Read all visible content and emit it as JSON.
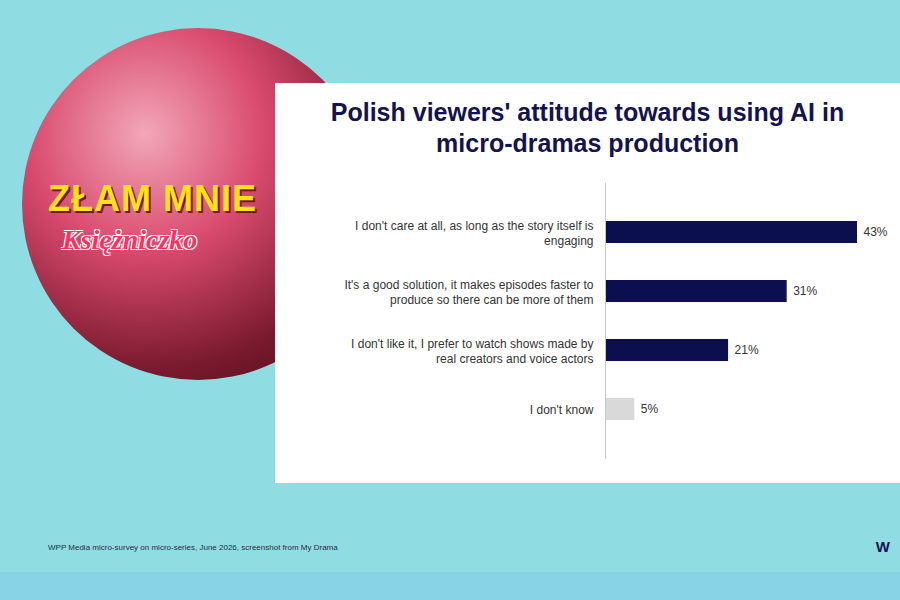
{
  "chart_data": {
    "type": "bar",
    "orientation": "horizontal",
    "title": "Polish viewers' attitude towards using AI in micro-dramas production",
    "categories": [
      "I don't care at all, as long as the story itself is engaging",
      "It's a good solution, it makes episodes faster to produce so there can be more of them",
      "I don't like it, I prefer to watch shows made by real creators and voice actors",
      "I don't know"
    ],
    "values": [
      43,
      31,
      21,
      5
    ],
    "value_labels": [
      "43%",
      "31%",
      "21%",
      "5%"
    ],
    "data_labels": true,
    "colors": [
      "#0b0f50",
      "#0b0f50",
      "#0b0f50",
      "#d9d9d9"
    ],
    "xlim": [
      0,
      43
    ],
    "tick_labels": false,
    "grid": false
  },
  "source": "WPP Media micro-survey on micro-series, June 2026, screenshot from My Drama",
  "logo": "W",
  "poster_text": [
    "ZŁAM MNIE",
    "Księżniczko"
  ]
}
